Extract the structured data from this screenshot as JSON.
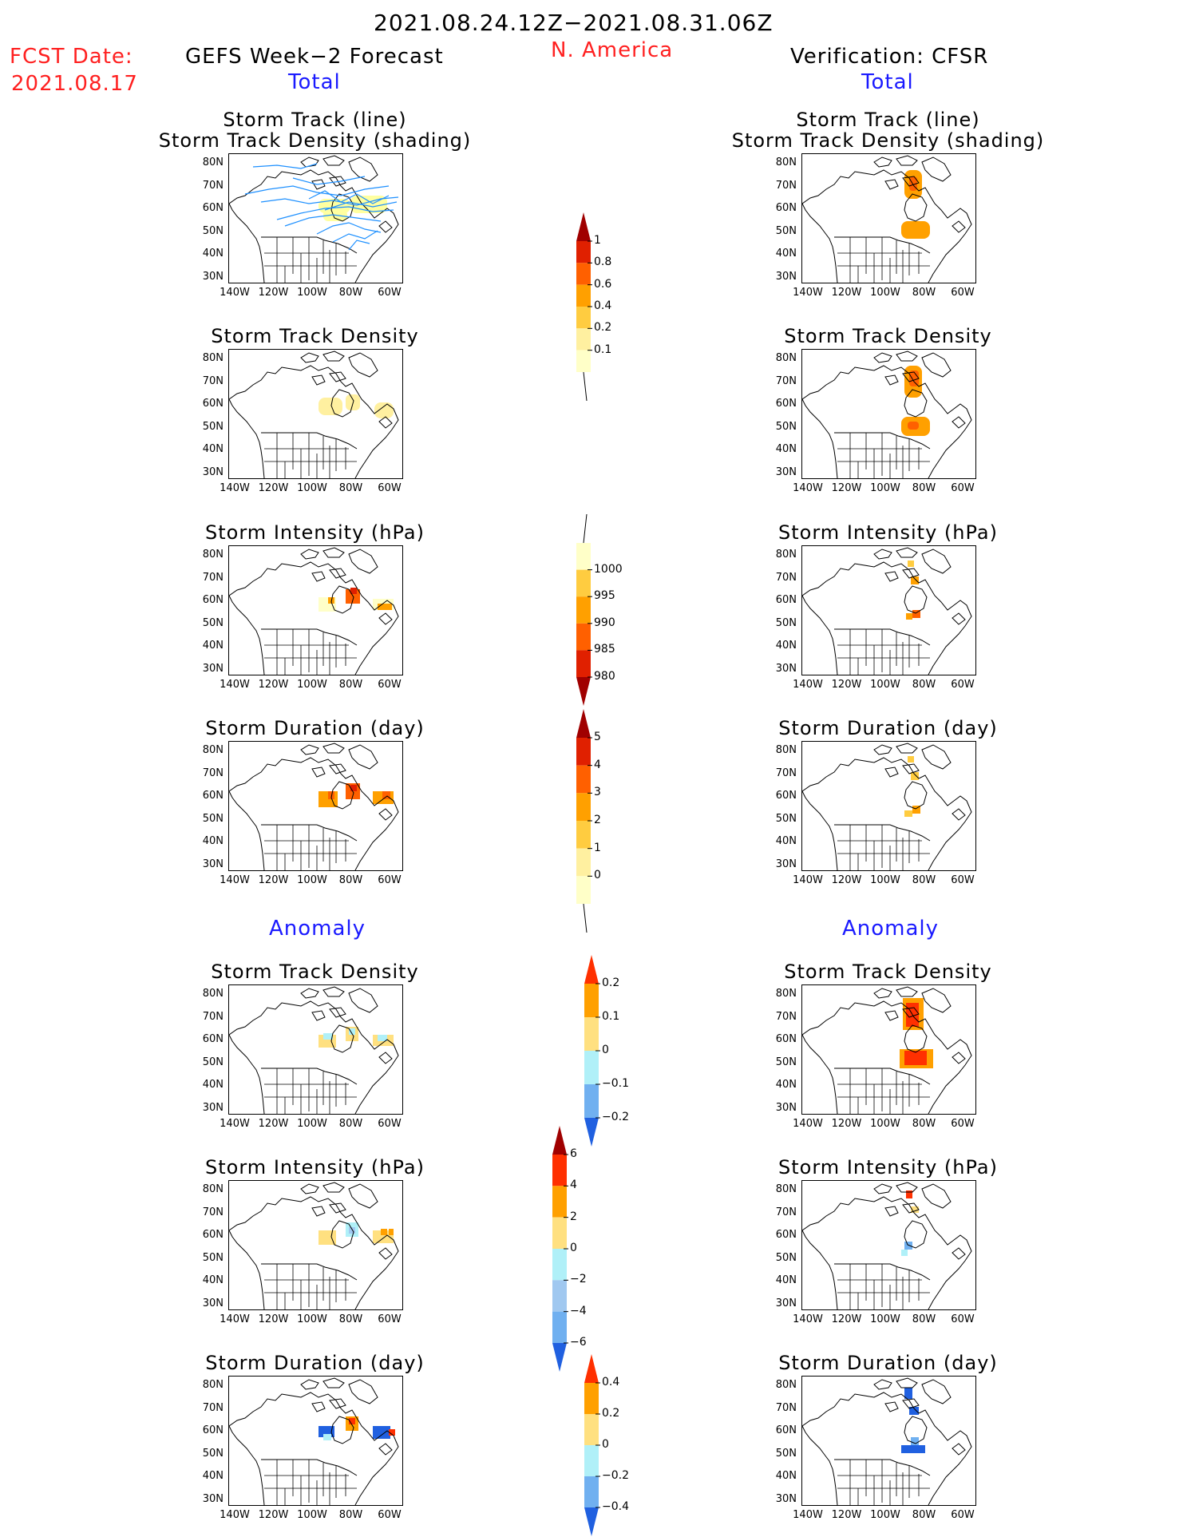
{
  "header": {
    "period": "2021.08.24.12Z−2021.08.31.06Z",
    "fcst_label": "FCST Date:",
    "fcst_date": "2021.08.17",
    "left_title": "GEFS Week−2 Forecast",
    "region": "N. America",
    "right_title": "Verification: CFSR"
  },
  "sections": {
    "total": "Total",
    "anomaly": "Anomaly"
  },
  "panel_titles": {
    "track_line": "Storm Track (line)",
    "track_shading": "Storm Track Density (shading)",
    "density": "Storm Track Density",
    "intensity": "Storm Intensity (hPa)",
    "duration": "Storm Duration (day)"
  },
  "axes": {
    "lat_labels": [
      "80N",
      "70N",
      "60N",
      "50N",
      "40N",
      "30N"
    ],
    "lon_labels": [
      "140W",
      "120W",
      "100W",
      "80W",
      "60W"
    ]
  },
  "colorbars": {
    "density_total": {
      "labels": [
        "1",
        "0.8",
        "0.6",
        "0.4",
        "0.2",
        "0.1"
      ],
      "colors": [
        "#a00000",
        "#e02000",
        "#ff6000",
        "#ffa000",
        "#ffcc40",
        "#fff0a0",
        "#ffffc8"
      ]
    },
    "intensity_total": {
      "labels": [
        "1000",
        "995",
        "990",
        "985",
        "980"
      ],
      "colors": [
        "#ffffc8",
        "#ffcc40",
        "#ffa000",
        "#ff6000",
        "#e02000",
        "#a00000"
      ]
    },
    "duration_total": {
      "labels": [
        "5",
        "4",
        "3",
        "2",
        "1",
        "0"
      ],
      "colors": [
        "#a00000",
        "#e02000",
        "#ff6000",
        "#ffa000",
        "#ffcc40",
        "#fff0a0",
        "#ffffc8"
      ]
    },
    "density_anom": {
      "labels": [
        "0.2",
        "0.1",
        "0",
        "−0.1",
        "−0.2"
      ],
      "colors": [
        "#ff3000",
        "#ffa000",
        "#ffe080",
        "#b0f0f8",
        "#70b0f0",
        "#2060e0"
      ]
    },
    "intensity_anom": {
      "labels": [
        "6",
        "4",
        "2",
        "0",
        "−2",
        "−4",
        "−6"
      ],
      "colors": [
        "#a00000",
        "#ff3000",
        "#ffa000",
        "#ffe080",
        "#b0f0f8",
        "#a0c8f0",
        "#70b0f0",
        "#2060e0"
      ]
    },
    "duration_anom": {
      "labels": [
        "0.4",
        "0.2",
        "0",
        "−0.2",
        "−0.4"
      ],
      "colors": [
        "#ff3000",
        "#ffa000",
        "#ffe080",
        "#b0f0f8",
        "#70b0f0",
        "#2060e0"
      ]
    }
  },
  "colors": {
    "track_line": "#1e90ff",
    "title_red": "#ff2020",
    "section_blue": "#1a1aff"
  }
}
